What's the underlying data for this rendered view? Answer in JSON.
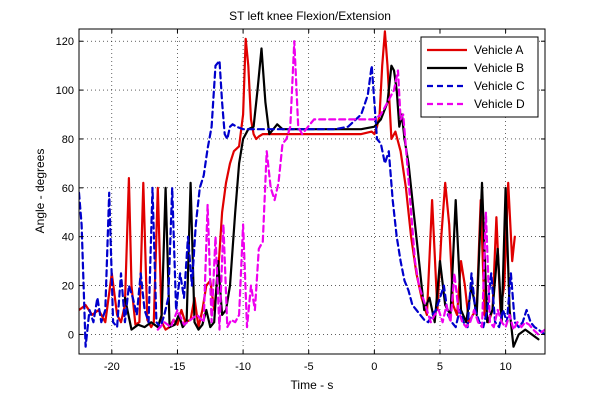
{
  "chart_data": {
    "type": "line",
    "title": "ST left knee Flexion/Extension",
    "xlabel": "Time - s",
    "ylabel": "Angle - degrees",
    "xlim": [
      -22.5,
      13
    ],
    "ylim": [
      -8,
      125
    ],
    "xticks": [
      -20,
      -15,
      -10,
      -5,
      0,
      5,
      10
    ],
    "yticks": [
      0,
      20,
      40,
      60,
      80,
      100,
      120
    ],
    "xtick_labels": [
      "-20",
      "-15",
      "-10",
      "-5",
      "0",
      "5",
      "10"
    ],
    "ytick_labels": [
      "0",
      "20",
      "40",
      "60",
      "80",
      "100",
      "120"
    ],
    "grid": true,
    "legend_position": "top-right",
    "series": [
      {
        "name": "Vehicle A",
        "color": "#e00000",
        "dash": "solid",
        "width": 2.2,
        "x": [
          -22.5,
          -22,
          -21.5,
          -21,
          -20.5,
          -20,
          -19.6,
          -19.3,
          -19.0,
          -18.7,
          -18.5,
          -18.2,
          -17.9,
          -17.6,
          -17.3,
          -17.0,
          -16.8,
          -16.5,
          -16.2,
          -15.9,
          -15.6,
          -15.3,
          -15.0,
          -14.7,
          -14.4,
          -14.0,
          -13.7,
          -13.4,
          -13.1,
          -12.8,
          -12.5,
          -12.2,
          -11.9,
          -11.6,
          -11.3,
          -11.0,
          -10.7,
          -10.3,
          -10.0,
          -9.8,
          -9.6,
          -9.4,
          -9.2,
          -9.0,
          -8.8,
          -8.5,
          -8.0,
          -7.0,
          -6.0,
          -5.0,
          -4.0,
          -3.0,
          -2.0,
          -1.0,
          -0.2,
          0.0,
          0.2,
          0.4,
          0.6,
          0.8,
          1.0,
          1.3,
          1.6,
          2.0,
          2.4,
          2.8,
          3.2,
          3.6,
          4.0,
          4.4,
          4.8,
          5.1,
          5.4,
          5.7,
          6.0,
          6.3,
          6.6,
          6.9,
          7.2,
          7.5,
          7.8,
          8.1,
          8.4,
          8.7,
          9.0,
          9.3,
          9.6,
          9.9,
          10.2,
          10.5,
          10.7
        ],
        "y": [
          10,
          12,
          8,
          10,
          5,
          25,
          8,
          5,
          12,
          64,
          20,
          4,
          5,
          62,
          6,
          3,
          5,
          60,
          5,
          2,
          3,
          6,
          4,
          10,
          5,
          6,
          15,
          3,
          10,
          20,
          22,
          10,
          25,
          50,
          62,
          70,
          75,
          77,
          90,
          121,
          110,
          88,
          82,
          80,
          81,
          82,
          82,
          82,
          82,
          82,
          82,
          82,
          82,
          82,
          83,
          82,
          85,
          90,
          110,
          124,
          110,
          80,
          83,
          75,
          60,
          40,
          25,
          15,
          8,
          55,
          10,
          40,
          62,
          45,
          12,
          8,
          30,
          20,
          5,
          8,
          10,
          55,
          8,
          5,
          10,
          48,
          10,
          20,
          62,
          30,
          40
        ]
      },
      {
        "name": "Vehicle B",
        "color": "#000000",
        "dash": "solid",
        "width": 2.2,
        "x": [
          -19.0,
          -18.5,
          -18.0,
          -17.5,
          -17.0,
          -16.5,
          -16.2,
          -15.9,
          -15.6,
          -15.2,
          -14.9,
          -14.6,
          -14.3,
          -14.0,
          -13.7,
          -13.4,
          -13.1,
          -12.8,
          -12.5,
          -12.2,
          -11.9,
          -11.6,
          -11.3,
          -11.0,
          -10.6,
          -10.3,
          -10.0,
          -9.6,
          -9.2,
          -8.9,
          -8.6,
          -8.3,
          -8.0,
          -7.7,
          -7.4,
          -7.0,
          -6.5,
          -5.0,
          -3.0,
          -1.0,
          0.0,
          0.5,
          1.0,
          1.3,
          1.5,
          1.7,
          1.9,
          2.1,
          2.3,
          2.6,
          3.0,
          3.4,
          3.8,
          4.2,
          4.6,
          5.0,
          5.4,
          5.8,
          6.2,
          6.6,
          7.0,
          7.4,
          7.8,
          8.2,
          8.6,
          9.0,
          9.4,
          9.7,
          10.0,
          10.3,
          10.6,
          11.0,
          11.5,
          12.0,
          12.5
        ],
        "y": [
          15,
          2,
          4,
          3,
          5,
          3,
          8,
          60,
          3,
          4,
          8,
          3,
          5,
          62,
          5,
          2,
          4,
          10,
          3,
          5,
          30,
          8,
          10,
          20,
          50,
          70,
          80,
          84,
          85,
          100,
          117,
          95,
          82,
          84,
          86,
          84,
          84,
          84,
          84,
          84,
          85,
          88,
          95,
          110,
          108,
          100,
          85,
          90,
          80,
          70,
          50,
          30,
          10,
          15,
          5,
          30,
          12,
          8,
          55,
          10,
          5,
          20,
          8,
          62,
          5,
          10,
          35,
          5,
          60,
          10,
          -5,
          0,
          2,
          0,
          -2
        ]
      },
      {
        "name": "Vehicle C",
        "color": "#0000cc",
        "dash": "dashed",
        "width": 2.2,
        "x": [
          -22.5,
          -22.3,
          -22.0,
          -21.7,
          -21.4,
          -21.1,
          -20.8,
          -20.5,
          -20.2,
          -19.9,
          -19.6,
          -19.3,
          -19.0,
          -18.7,
          -18.4,
          -18.1,
          -17.8,
          -17.5,
          -17.2,
          -16.9,
          -16.6,
          -16.3,
          -16.0,
          -15.7,
          -15.4,
          -15.1,
          -14.8,
          -14.5,
          -14.2,
          -13.9,
          -13.6,
          -13.3,
          -13.0,
          -12.7,
          -12.4,
          -12.1,
          -11.8,
          -11.6,
          -11.4,
          -11.2,
          -11.0,
          -10.8,
          -10.5,
          -10.0,
          -9.5,
          -9.0,
          -8.0,
          -7.0,
          -6.0,
          -5.0,
          -4.0,
          -3.0,
          -2.0,
          -1.0,
          -0.5,
          -0.2,
          0.0,
          0.2,
          0.5,
          0.8,
          1.1,
          1.4,
          1.7,
          2.0,
          2.3,
          2.6,
          2.9,
          3.2,
          3.5,
          3.8,
          4.1,
          4.4,
          4.7,
          5.0,
          5.3,
          5.6,
          5.9,
          6.2,
          6.5,
          6.8,
          7.1,
          7.4,
          7.7,
          8.0,
          8.3,
          8.6,
          8.9,
          9.2,
          9.5,
          9.8,
          10.1,
          10.4,
          10.7,
          11.0,
          11.3,
          11.6,
          11.9,
          12.2,
          12.5,
          13.0
        ],
        "y": [
          58,
          45,
          -5,
          10,
          5,
          15,
          5,
          10,
          58,
          5,
          3,
          25,
          5,
          20,
          15,
          8,
          25,
          10,
          5,
          60,
          5,
          3,
          8,
          15,
          60,
          10,
          25,
          15,
          40,
          20,
          45,
          60,
          65,
          76,
          85,
          110,
          112,
          95,
          82,
          80,
          85,
          86,
          85,
          84,
          84,
          84,
          84,
          84,
          84,
          84,
          84,
          84,
          85,
          90,
          98,
          110,
          95,
          80,
          78,
          70,
          75,
          55,
          40,
          30,
          22,
          18,
          12,
          10,
          8,
          6,
          5,
          8,
          10,
          15,
          20,
          8,
          5,
          3,
          10,
          5,
          3,
          25,
          10,
          5,
          3,
          10,
          25,
          5,
          3,
          10,
          5,
          25,
          5,
          3,
          5,
          10,
          5,
          3,
          2,
          0
        ]
      },
      {
        "name": "Vehicle D",
        "color": "#ee00ee",
        "dash": "dashed",
        "width": 2.2,
        "x": [
          -16.5,
          -16.0,
          -15.5,
          -15.0,
          -14.5,
          -14.0,
          -13.5,
          -13.0,
          -12.7,
          -12.4,
          -12.1,
          -11.8,
          -11.5,
          -11.2,
          -10.9,
          -10.6,
          -10.3,
          -10.0,
          -9.7,
          -9.4,
          -9.1,
          -8.8,
          -8.5,
          -8.2,
          -7.9,
          -7.6,
          -7.3,
          -7.0,
          -6.7,
          -6.4,
          -6.1,
          -5.8,
          -5.5,
          -5.2,
          -4.9,
          -4.6,
          -4.3,
          -4.0,
          -3.0,
          -2.0,
          -1.0,
          0.0,
          0.5,
          1.0,
          1.5,
          1.8,
          2.0,
          2.2,
          2.5,
          2.8,
          3.1,
          3.4,
          3.7,
          4.0,
          4.3,
          4.6,
          4.9,
          5.2,
          5.5,
          5.8,
          6.1,
          6.4,
          6.7,
          7.0,
          7.3,
          7.6,
          7.9,
          8.2,
          8.5,
          8.8,
          9.1,
          9.4,
          9.7,
          10.0,
          10.3,
          10.6,
          10.9,
          11.2,
          11.5,
          11.8,
          12.1,
          12.5,
          13.0
        ],
        "y": [
          2,
          5,
          3,
          10,
          4,
          6,
          8,
          5,
          53,
          5,
          40,
          2,
          45,
          3,
          6,
          5,
          8,
          45,
          3,
          20,
          10,
          35,
          38,
          75,
          60,
          55,
          62,
          78,
          80,
          85,
          120,
          85,
          82,
          84,
          86,
          88,
          88,
          88,
          88,
          88,
          88,
          88,
          90,
          95,
          100,
          108,
          88,
          90,
          70,
          50,
          30,
          20,
          15,
          10,
          5,
          8,
          10,
          5,
          12,
          5,
          25,
          10,
          5,
          3,
          5,
          10,
          5,
          3,
          50,
          5,
          3,
          10,
          5,
          3,
          8,
          2,
          5,
          3,
          5,
          4,
          2,
          0,
          2
        ]
      }
    ]
  }
}
